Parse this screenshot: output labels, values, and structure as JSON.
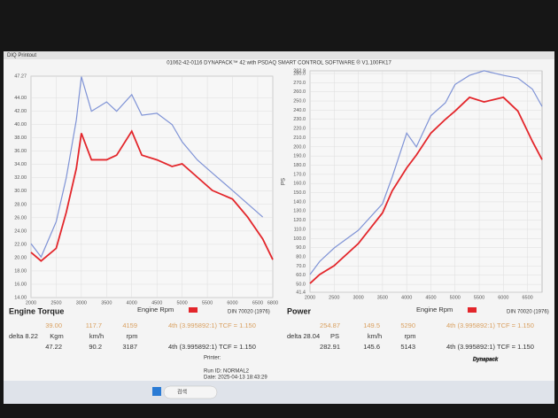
{
  "window": {
    "app": "DIQ Printout",
    "title": "01062-42-0116 DYNAPACK™ 42 with PSDAQ SMART CONTROL SOFTWARE ® V1.100FK17"
  },
  "chart_data": [
    {
      "type": "line",
      "title": "Engine Torque",
      "xlabel": "Engine Rpm",
      "note": "DIN 70020 (1976)",
      "x": [
        2000,
        2200,
        2500,
        2700,
        2900,
        3000,
        3200,
        3500,
        3700,
        4000,
        4200,
        4500,
        4800,
        5000,
        5300,
        5600,
        6000,
        6300,
        6600,
        6800
      ],
      "series": [
        {
          "color": "#7f93d6",
          "values": [
            22.1,
            20.1,
            25.4,
            32,
            40.7,
            47.2,
            42,
            43.4,
            42,
            44.5,
            41.4,
            41.7,
            40,
            37.4,
            34.7,
            32.7,
            30.1,
            28.1,
            26.1,
            null
          ]
        },
        {
          "color": "#e3262b",
          "values": [
            20.8,
            19.5,
            21.4,
            26.8,
            33.4,
            38.7,
            34.7,
            34.7,
            35.4,
            39,
            35.4,
            34.7,
            33.7,
            34.1,
            32.1,
            30.1,
            28.8,
            26.1,
            22.8,
            19.7
          ]
        }
      ],
      "xlim": [
        2000,
        6800
      ],
      "xticks": [
        2000,
        2500,
        3000,
        3500,
        4000,
        4500,
        5000,
        5500,
        6000,
        6500,
        6800
      ],
      "ylim": [
        14,
        47.27
      ],
      "yticks": [
        {
          "value": 14,
          "label": "14.00"
        },
        {
          "value": 16,
          "label": "16.00"
        },
        {
          "value": 18,
          "label": "18.00"
        },
        {
          "value": 20,
          "label": "20.00"
        },
        {
          "value": 22,
          "label": "22.00"
        },
        {
          "value": 24,
          "label": "24.00"
        },
        {
          "value": 26,
          "label": "26.00"
        },
        {
          "value": 28,
          "label": "28.00"
        },
        {
          "value": 30,
          "label": "30.00"
        },
        {
          "value": 32,
          "label": "32.00"
        },
        {
          "value": 34,
          "label": "34.00"
        },
        {
          "value": 36,
          "label": "36.00"
        },
        {
          "value": 38,
          "label": "38.00"
        },
        {
          "value": 40,
          "label": "40.00"
        },
        {
          "value": 42,
          "label": "42.00"
        },
        {
          "value": 44,
          "label": "44.00"
        },
        47.27
      ],
      "grid": true
    },
    {
      "type": "line",
      "title": "Power",
      "xlabel": "Engine Rpm",
      "ylabel": "PS",
      "note": "DIN 70020 (1976)",
      "x": [
        2000,
        2200,
        2500,
        3000,
        3500,
        3700,
        4000,
        4200,
        4500,
        4800,
        5000,
        5300,
        5600,
        6000,
        6300,
        6600,
        6800
      ],
      "series": [
        {
          "color": "#7f93d6",
          "values": [
            60.7,
            75,
            89.7,
            109,
            138,
            167,
            215,
            200,
            234,
            248,
            268,
            278,
            283,
            278,
            275,
            263,
            244
          ]
        },
        {
          "color": "#e3262b",
          "values": [
            51,
            60.7,
            70.4,
            94.5,
            128,
            152,
            177,
            191,
            215,
            230,
            239,
            254,
            249,
            254,
            239,
            206,
            186
          ]
        }
      ],
      "xlim": [
        2000,
        6800
      ],
      "xticks": [
        2000,
        2500,
        3000,
        3500,
        4000,
        4500,
        5000,
        5500,
        6000,
        6500
      ],
      "ylim": [
        41.4,
        282.9
      ],
      "yticks": [
        41.4,
        {
          "value": 50,
          "label": "50.0"
        },
        {
          "value": 60,
          "label": "60.0"
        },
        {
          "value": 70,
          "label": "70.0"
        },
        {
          "value": 80,
          "label": "80.0"
        },
        {
          "value": 90,
          "label": "90.0"
        },
        {
          "value": 100,
          "label": "100.0"
        },
        {
          "value": 110,
          "label": "110.0"
        },
        {
          "value": 120,
          "label": "120.0"
        },
        {
          "value": 130,
          "label": "130.0"
        },
        {
          "value": 140,
          "label": "140.0"
        },
        {
          "value": 150,
          "label": "150.0"
        },
        {
          "value": 160,
          "label": "160.0"
        },
        {
          "value": 170,
          "label": "170.0"
        },
        {
          "value": 180,
          "label": "180.0"
        },
        {
          "value": 190,
          "label": "190.0"
        },
        {
          "value": 200,
          "label": "200.0"
        },
        {
          "value": 210,
          "label": "210.0"
        },
        {
          "value": 220,
          "label": "220.0"
        },
        {
          "value": 230,
          "label": "230.0"
        },
        {
          "value": 240,
          "label": "240.0"
        },
        {
          "value": 250,
          "label": "250.0"
        },
        {
          "value": 260,
          "label": "260.0"
        },
        {
          "value": 270,
          "label": "270.0"
        },
        {
          "value": 280,
          "label": "280.0"
        },
        282.9
      ],
      "grid": true
    }
  ],
  "readouts": [
    {
      "cursor": [
        "39.00",
        "117.7",
        "4159",
        "4th (3.995892:1) TCF = 1.150"
      ],
      "delta": "delta 8.22",
      "units": [
        "Kgm",
        "km/h",
        "rpm"
      ],
      "peak": [
        "47.22",
        "90.2",
        "3187",
        "4th (3.995892:1) TCF = 1.150"
      ]
    },
    {
      "cursor": [
        "254.87",
        "149.5",
        "5290",
        "4th (3.995892:1) TCF = 1.150"
      ],
      "delta": "delta 28.04",
      "units": [
        "PS",
        "km/h",
        "rpm"
      ],
      "peak": [
        "282.91",
        "145.6",
        "5143",
        "4th (3.995892:1) TCF = 1.150"
      ]
    }
  ],
  "footer": {
    "printer": "Printer:",
    "run": "Run ID: NORMAL2",
    "date": "Date: 2025-04-13 18:43:29",
    "logo": "Dynapack",
    "search": "검색"
  }
}
